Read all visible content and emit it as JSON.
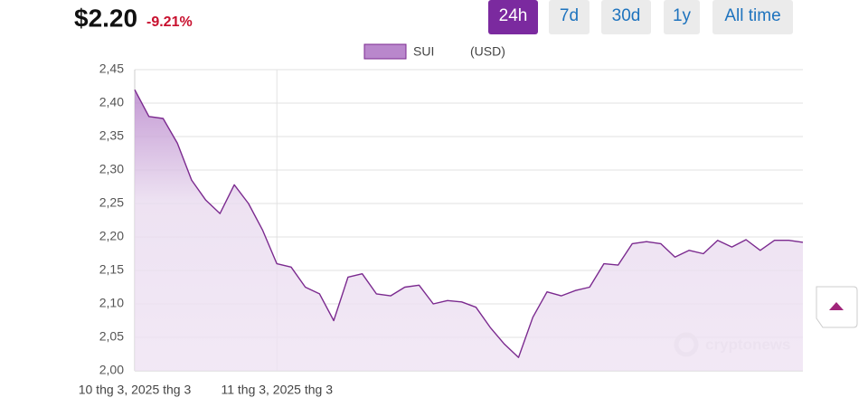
{
  "header": {
    "price": "$2.20",
    "change": "-9.21%",
    "ranges": [
      "24h",
      "7d",
      "30d",
      "1y",
      "All time"
    ],
    "active_range": 0
  },
  "chart_data": {
    "type": "area",
    "legend": "SUI",
    "unit_label": "(USD)",
    "watermark": "cryptonews",
    "categories": [
      "10 thg 3, 2025 thg 3",
      null,
      null,
      null,
      null,
      null,
      null,
      null,
      null,
      null,
      "11 thg 3, 2025 thg 3",
      null,
      null,
      null,
      null,
      null,
      null,
      null,
      null,
      null,
      null,
      null,
      null,
      null,
      null,
      null,
      null,
      null,
      null,
      null,
      null,
      null,
      null,
      null,
      null,
      null,
      null,
      null,
      null,
      null,
      null,
      null,
      null,
      null,
      null,
      null,
      null,
      null
    ],
    "series": [
      {
        "name": "SUI",
        "color": "#7b2a8f",
        "fill": "#b987cc",
        "values": [
          2.42,
          2.38,
          2.377,
          2.34,
          2.285,
          2.255,
          2.235,
          2.278,
          2.25,
          2.21,
          2.16,
          2.155,
          2.125,
          2.115,
          2.075,
          2.14,
          2.145,
          2.115,
          2.112,
          2.125,
          2.128,
          2.1,
          2.105,
          2.103,
          2.095,
          2.065,
          2.04,
          2.02,
          2.08,
          2.118,
          2.112,
          2.12,
          2.125,
          2.16,
          2.158,
          2.19,
          2.193,
          2.19,
          2.17,
          2.18,
          2.175,
          2.195,
          2.185,
          2.196,
          2.18,
          2.195,
          2.195,
          2.192
        ]
      }
    ],
    "ylim": [
      2.0,
      2.45
    ],
    "yticks": [
      {
        "value": 2.0,
        "label": "2,00"
      },
      {
        "value": 2.05,
        "label": "2,05"
      },
      {
        "value": 2.1,
        "label": "2,10"
      },
      {
        "value": 2.15,
        "label": "2,15"
      },
      {
        "value": 2.2,
        "label": "2,20"
      },
      {
        "value": 2.25,
        "label": "2,25"
      },
      {
        "value": 2.3,
        "label": "2,30"
      },
      {
        "value": 2.35,
        "label": "2,35"
      },
      {
        "value": 2.4,
        "label": "2,40"
      },
      {
        "value": 2.45,
        "label": "2,45"
      }
    ],
    "grid": true
  }
}
